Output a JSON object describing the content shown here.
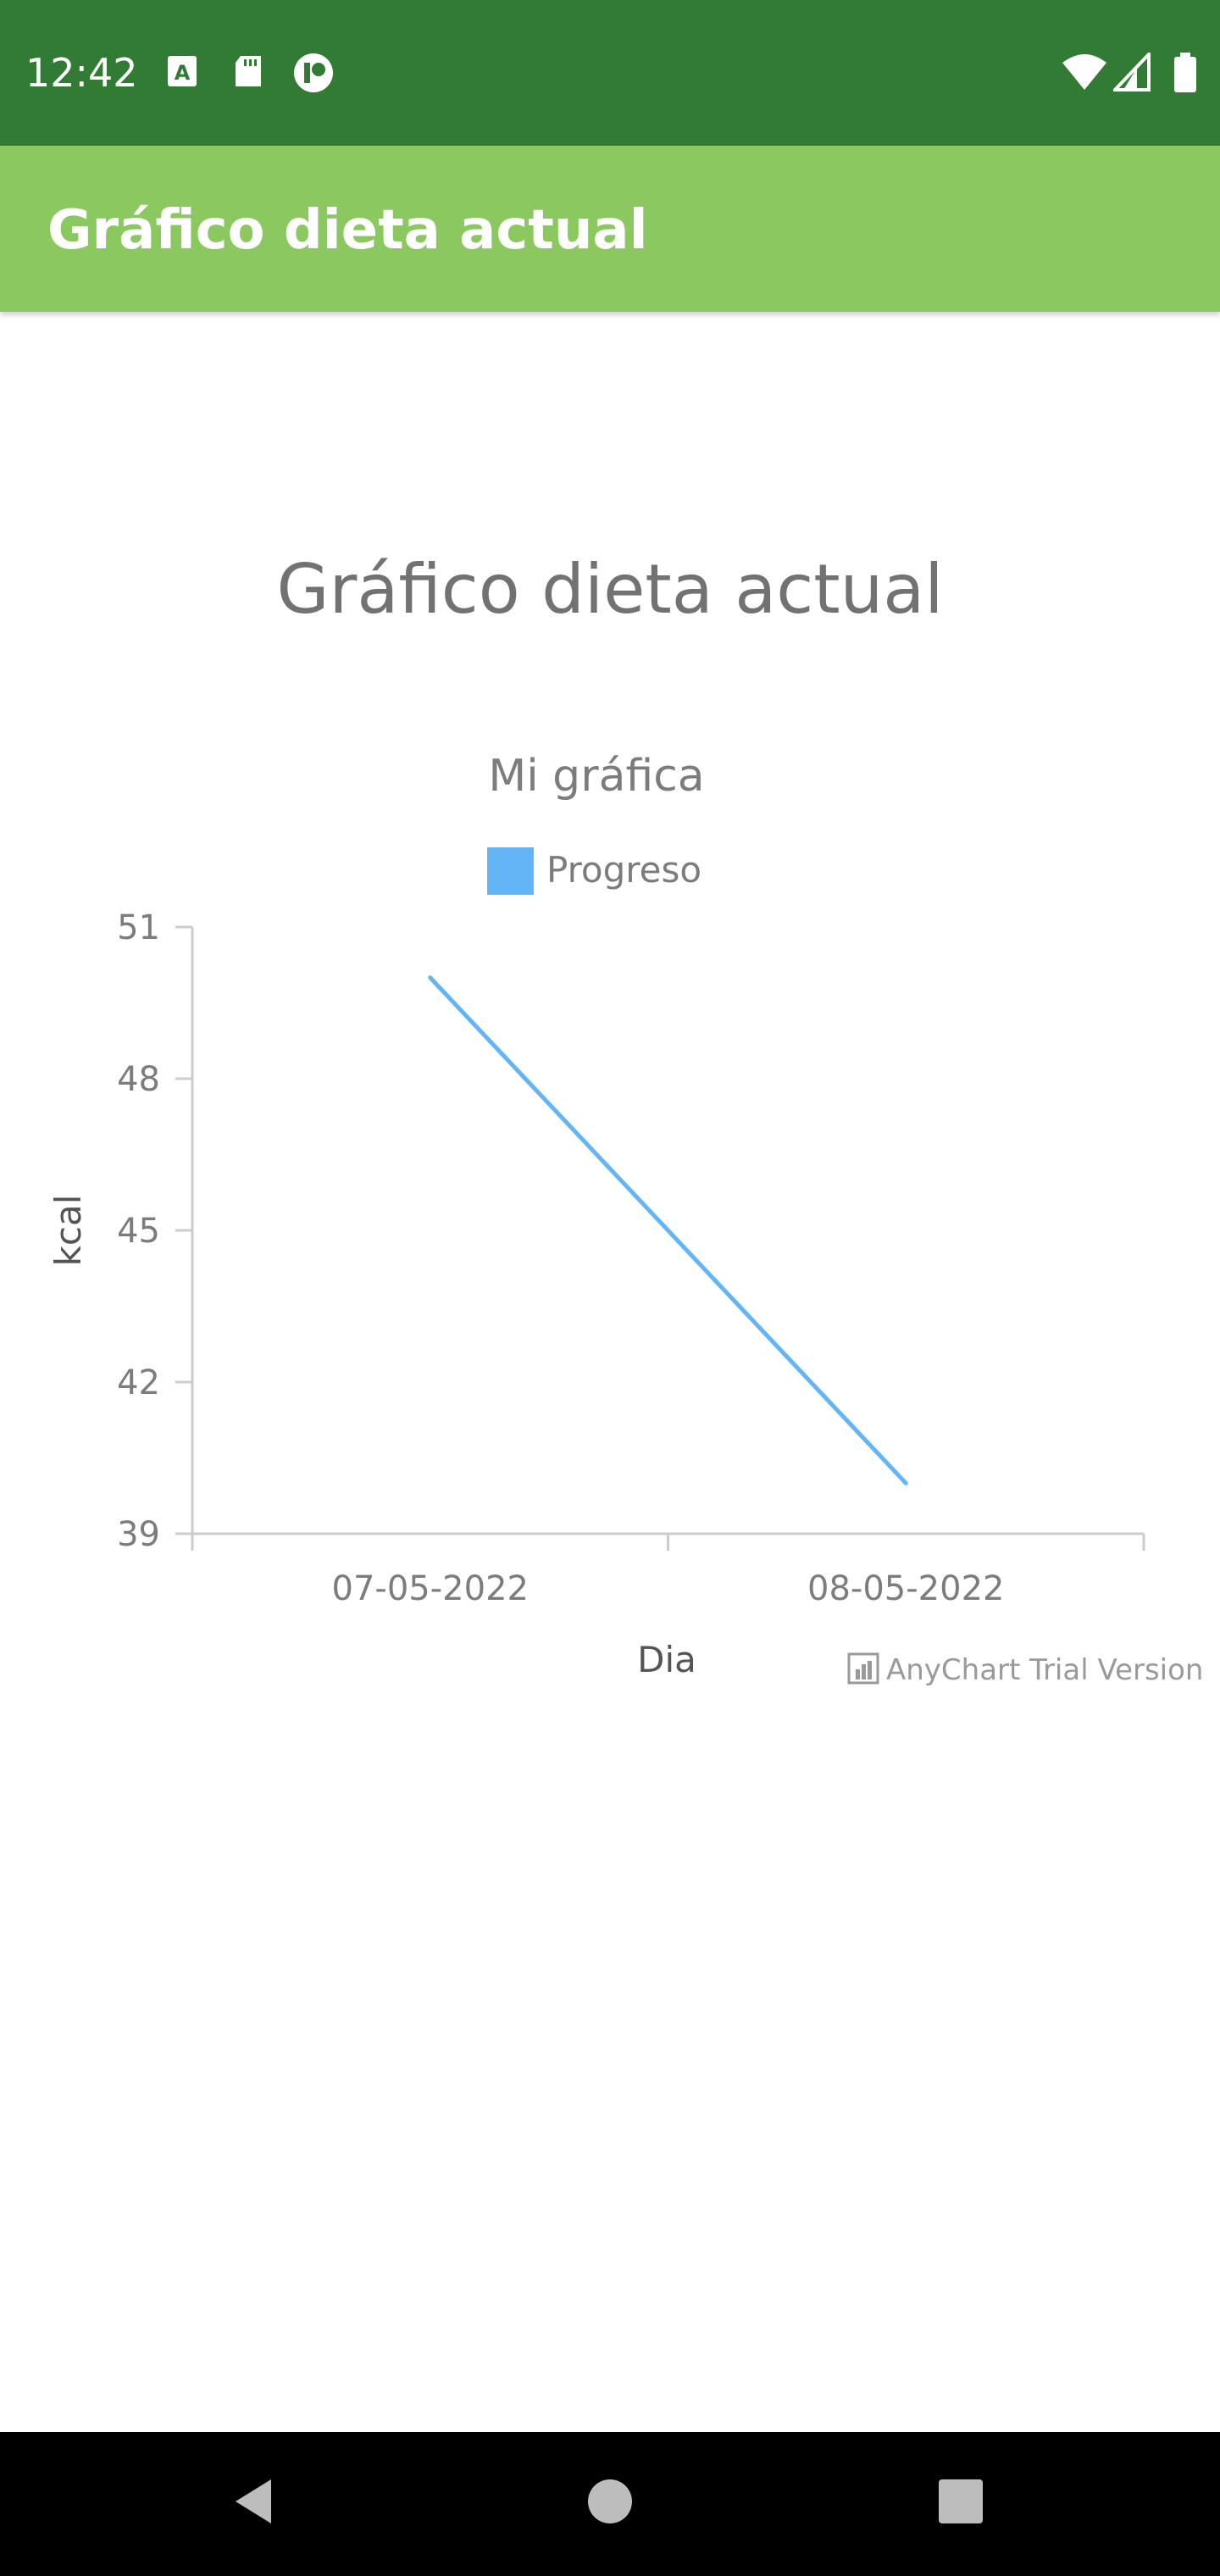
{
  "status_bar": {
    "time": "12:42",
    "left_icons": [
      "keyboard-a-icon",
      "sd-card-icon",
      "app-badge-icon"
    ],
    "right_icons": [
      "wifi-icon",
      "cell-signal-icon",
      "battery-icon"
    ],
    "background_color": "#327b34"
  },
  "app_bar": {
    "title": "Gráfico dieta actual",
    "background_color": "#8bc960"
  },
  "page": {
    "heading": "Gráfico dieta actual"
  },
  "chart_data": {
    "type": "line",
    "title": "Mi gráfica",
    "xlabel": "Dia",
    "ylabel": "kcal",
    "categories": [
      "07-05-2022",
      "08-05-2022"
    ],
    "yticks": [
      39,
      42,
      45,
      48,
      51
    ],
    "ylim": [
      39,
      51
    ],
    "legend_placement": "top",
    "grid": false,
    "series": [
      {
        "name": "Progreso",
        "values": [
          50,
          40
        ],
        "color": "#64b5f6"
      }
    ],
    "watermark": "AnyChart Trial Version"
  },
  "nav_bar": {
    "buttons": [
      "back-icon",
      "home-icon",
      "recents-icon"
    ]
  }
}
